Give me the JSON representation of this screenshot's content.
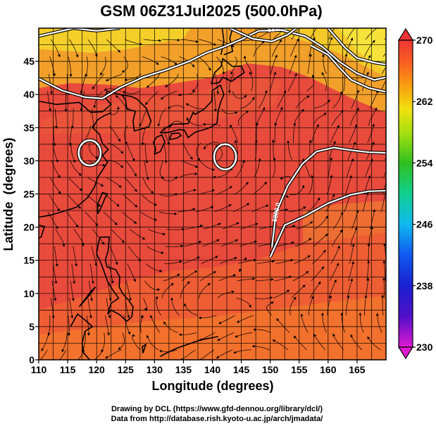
{
  "title": "GSM 06Z31Jul2025 (500.0hPa)",
  "chart_data": {
    "type": "heatmap",
    "title": "GSM 06Z31Jul2025 (500.0hPa)",
    "xlabel": "Longitude (degrees)",
    "ylabel": "Latitude  (degrees)",
    "xlim": [
      110,
      170
    ],
    "ylim": [
      0,
      50
    ],
    "x_ticks": [
      "110",
      "115",
      "120",
      "125",
      "130",
      "135",
      "140",
      "145",
      "150",
      "155",
      "160",
      "165"
    ],
    "y_ticks": [
      "0",
      "5",
      "10",
      "15",
      "20",
      "25",
      "30",
      "35",
      "40",
      "45"
    ],
    "grid": true,
    "colorbar": {
      "min": 230,
      "max": 270,
      "ticks": [
        "270",
        "262",
        "254",
        "246",
        "238",
        "230"
      ],
      "stops": [
        {
          "value": 230,
          "color": "#e01ad0"
        },
        {
          "value": 234,
          "color": "#5010c8"
        },
        {
          "value": 238,
          "color": "#1a20d0"
        },
        {
          "value": 242,
          "color": "#1058f0"
        },
        {
          "value": 246,
          "color": "#10b8f0"
        },
        {
          "value": 250,
          "color": "#10d090"
        },
        {
          "value": 254,
          "color": "#30c020"
        },
        {
          "value": 258,
          "color": "#a8e010"
        },
        {
          "value": 261,
          "color": "#f0e010"
        },
        {
          "value": 264,
          "color": "#f8a010"
        },
        {
          "value": 267,
          "color": "#f86020"
        },
        {
          "value": 270,
          "color": "#ee3434"
        }
      ]
    },
    "contours": [
      {
        "level": 5880,
        "label": "5880.0",
        "points": [
          [
            110,
            48.8
          ],
          [
            116,
            50
          ],
          [
            120,
            49.6
          ],
          [
            124,
            50
          ]
        ]
      },
      {
        "level": 5880,
        "label": "5880.0",
        "points": [
          [
            110,
            42.4
          ],
          [
            114,
            40.6
          ],
          [
            118,
            39.6
          ],
          [
            121,
            39.4
          ],
          [
            124,
            41
          ],
          [
            128,
            42.6
          ],
          [
            132,
            43.7
          ],
          [
            136,
            45
          ],
          [
            139,
            46.3
          ],
          [
            142,
            47.2
          ],
          [
            145,
            48.3
          ],
          [
            148,
            49.6
          ],
          [
            152,
            49.7
          ],
          [
            156,
            48.8
          ],
          [
            159,
            47.2
          ],
          [
            162,
            44.9
          ],
          [
            165,
            43.2
          ],
          [
            168,
            42.2
          ],
          [
            170,
            42.6
          ]
        ]
      },
      {
        "level": 5880,
        "label": "5880.0",
        "points": [
          [
            157,
            47.4
          ],
          [
            160,
            46
          ],
          [
            162,
            44
          ],
          [
            164,
            42.2
          ],
          [
            167,
            41
          ],
          [
            170,
            40.4
          ]
        ]
      },
      {
        "level": 5880,
        "label": "5880.0",
        "points": [
          [
            143,
            50
          ],
          [
            147,
            48.4
          ],
          [
            150.3,
            48
          ],
          [
            153,
            49
          ],
          [
            154.5,
            50
          ]
        ]
      },
      {
        "level": 5880,
        "label": "5880.0",
        "points": [
          [
            160,
            50
          ],
          [
            163,
            47
          ],
          [
            165,
            45.5
          ],
          [
            168,
            44.8
          ],
          [
            170,
            44.5
          ]
        ]
      },
      {
        "level": 5880,
        "label": "5880.0",
        "points": [
          [
            150,
            15.5
          ],
          [
            152.5,
            20.3
          ],
          [
            156,
            21.7
          ],
          [
            160,
            23.6
          ],
          [
            164,
            24.9
          ],
          [
            167,
            25.4
          ],
          [
            170,
            25.5
          ]
        ]
      },
      {
        "level": 5880,
        "label": "5880.0",
        "points": [
          [
            150.3,
            17
          ],
          [
            151,
            22.2
          ],
          [
            153,
            26.2
          ],
          [
            155.5,
            29.5
          ],
          [
            158,
            31.4
          ],
          [
            161,
            32
          ],
          [
            164,
            31.6
          ],
          [
            167,
            31.3
          ],
          [
            170,
            31.2
          ]
        ]
      },
      {
        "level": 5880,
        "label": "",
        "ring": true,
        "cx": 118.8,
        "cy": 31.2,
        "rx": 1.9,
        "ry": 1.9
      },
      {
        "level": 5880,
        "label": "",
        "ring": true,
        "cx": 142.2,
        "cy": 30.6,
        "rx": 1.9,
        "ry": 1.9
      }
    ],
    "contour_labels": [
      {
        "text": "5880.0",
        "lon": 151.3,
        "lat": 49.6,
        "angle": -8
      },
      {
        "text": "5880.0",
        "lon": 151.4,
        "lat": 22.2,
        "angle": -78
      }
    ],
    "vortices": [
      {
        "lon": 131,
        "lat": 26.5,
        "rx": 2.2,
        "ry": 1.8
      },
      {
        "lon": 141.5,
        "lat": 30.5,
        "rx": 1.5,
        "ry": 1.4
      },
      {
        "lon": 145.5,
        "lat": 40.5,
        "rx": 2.5,
        "ry": 2.2
      },
      {
        "lon": 155,
        "lat": 26,
        "rx": 3.2,
        "ry": 2.7
      },
      {
        "lon": 121.5,
        "lat": 38.5,
        "rx": 2.2,
        "ry": 1.8
      },
      {
        "lon": 118.5,
        "lat": 31,
        "rx": 1.2,
        "ry": 1.2
      },
      {
        "lon": 160,
        "lat": 40,
        "rx": 2.8,
        "ry": 2.4
      },
      {
        "lon": 133,
        "lat": 36.5,
        "rx": 1.8,
        "ry": 1.5
      }
    ]
  },
  "credits": {
    "drawing": "Drawing by DCL (https://www.gfd-dennou.org/library/dcl/)",
    "source": "Data from http://database.rish.kyoto-u.ac.jp/arch/jmadata/"
  }
}
